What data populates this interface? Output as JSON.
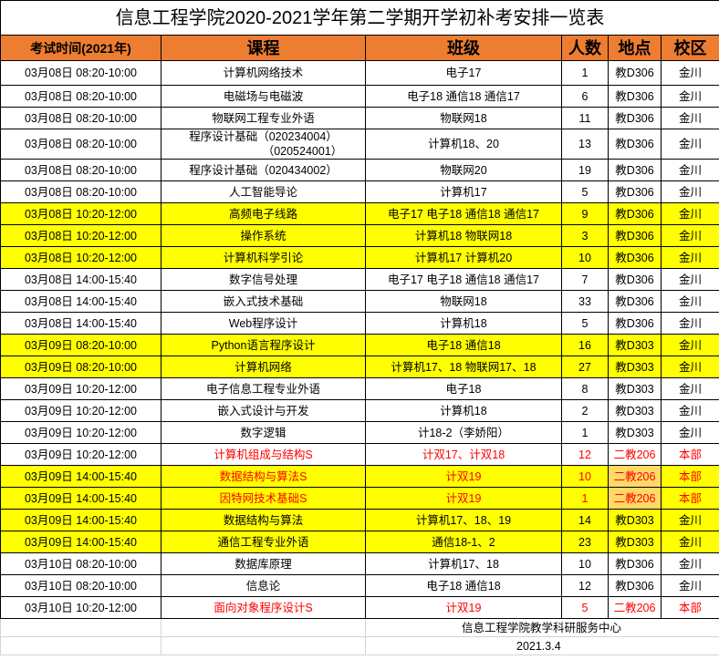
{
  "title": "信息工程学院2020-2021学年第二学期开学初补考安排一览表",
  "headers": [
    "考试时间(2021年)",
    "课程",
    "班级",
    "人数",
    "地点",
    "校区"
  ],
  "colors": {
    "header_bg": "#ed7d31",
    "highlight_row": "#ffff00",
    "highlight_location": "#ffd966",
    "red_text": "#ff0000"
  },
  "rows": [
    {
      "time": "03月08日 08:20-10:00",
      "course": "计算机网络技术",
      "class": "电子17",
      "count": "1",
      "location": "教D306",
      "campus": "金川",
      "hl": false,
      "red": false
    },
    {
      "time": "03月08日 08:20-10:00",
      "course": "电磁场与电磁波",
      "class": "电子18 通信18 通信17",
      "count": "6",
      "location": "教D306",
      "campus": "金川",
      "hl": false,
      "red": false
    },
    {
      "time": "03月08日 08:20-10:00",
      "course": "物联网工程专业外语",
      "class": "物联网18",
      "count": "11",
      "location": "教D306",
      "campus": "金川",
      "hl": false,
      "red": false
    },
    {
      "time": "03月08日 08:20-10:00",
      "course": "程序设计基础（020234004）",
      "course2": "（020524001）",
      "class": "计算机18、20",
      "count": "13",
      "location": "教D306",
      "campus": "金川",
      "hl": false,
      "red": false
    },
    {
      "time": "03月08日 08:20-10:00",
      "course": "程序设计基础（020434002）",
      "class": "物联网20",
      "count": "19",
      "location": "教D306",
      "campus": "金川",
      "hl": false,
      "red": false
    },
    {
      "time": "03月08日 08:20-10:00",
      "course": "人工智能导论",
      "class": "计算机17",
      "count": "5",
      "location": "教D306",
      "campus": "金川",
      "hl": false,
      "red": false
    },
    {
      "time": "03月08日 10:20-12:00",
      "course": "高频电子线路",
      "class": "电子17 电子18 通信18 通信17",
      "count": "9",
      "location": "教D306",
      "campus": "金川",
      "hl": true,
      "red": false
    },
    {
      "time": "03月08日 10:20-12:00",
      "course": "操作系统",
      "class": "计算机18 物联网18",
      "count": "3",
      "location": "教D306",
      "campus": "金川",
      "hl": true,
      "red": false
    },
    {
      "time": "03月08日 10:20-12:00",
      "course": "计算机科学引论",
      "class": "计算机17 计算机20",
      "count": "10",
      "location": "教D306",
      "campus": "金川",
      "hl": true,
      "red": false
    },
    {
      "time": "03月08日 14:00-15:40",
      "course": "数字信号处理",
      "class": "电子17 电子18 通信18 通信17",
      "count": "7",
      "location": "教D306",
      "campus": "金川",
      "hl": false,
      "red": false
    },
    {
      "time": "03月08日 14:00-15:40",
      "course": "嵌入式技术基础",
      "class": "物联网18",
      "count": "33",
      "location": "教D306",
      "campus": "金川",
      "hl": false,
      "red": false
    },
    {
      "time": "03月08日 14:00-15:40",
      "course": "Web程序设计",
      "class": "计算机18",
      "count": "5",
      "location": "教D306",
      "campus": "金川",
      "hl": false,
      "red": false
    },
    {
      "time": "03月09日 08:20-10:00",
      "course": "Python语言程序设计",
      "class": "电子18 通信18",
      "count": "16",
      "location": "教D303",
      "campus": "金川",
      "hl": true,
      "red": false
    },
    {
      "time": "03月09日 08:20-10:00",
      "course": "计算机网络",
      "class": "计算机17、18 物联网17、18",
      "count": "27",
      "location": "教D303",
      "campus": "金川",
      "hl": true,
      "red": false
    },
    {
      "time": "03月09日 10:20-12:00",
      "course": "电子信息工程专业外语",
      "class": "电子18",
      "count": "8",
      "location": "教D303",
      "campus": "金川",
      "hl": false,
      "red": false
    },
    {
      "time": "03月09日 10:20-12:00",
      "course": "嵌入式设计与开发",
      "class": "计算机18",
      "count": "2",
      "location": "教D303",
      "campus": "金川",
      "hl": false,
      "red": false
    },
    {
      "time": "03月09日 10:20-12:00",
      "course": "数字逻辑",
      "class": "计18-2（李娇阳）",
      "count": "1",
      "location": "教D303",
      "campus": "金川",
      "hl": false,
      "red": false
    },
    {
      "time": "03月09日 10:20-12:00",
      "course": "计算机组成与结构S",
      "class": "计双17、计双18",
      "count": "12",
      "location": "二教206",
      "campus": "本部",
      "hl": false,
      "red": true
    },
    {
      "time": "03月09日 14:00-15:40",
      "course": "数据结构与算法S",
      "class": "计双19",
      "count": "10",
      "location": "二教206",
      "campus": "本部",
      "hl": true,
      "red": true,
      "loc_hl": true
    },
    {
      "time": "03月09日 14:00-15:40",
      "course": "因特网技术基础S",
      "class": "计双19",
      "count": "1",
      "location": "二教206",
      "campus": "本部",
      "hl": true,
      "red": true,
      "loc_hl": true
    },
    {
      "time": "03月09日 14:00-15:40",
      "course": "数据结构与算法",
      "class": "计算机17、18、19",
      "count": "14",
      "location": "教D303",
      "campus": "金川",
      "hl": true,
      "red": false
    },
    {
      "time": "03月09日 14:00-15:40",
      "course": "通信工程专业外语",
      "class": "通信18-1、2",
      "count": "23",
      "location": "教D303",
      "campus": "金川",
      "hl": true,
      "red": false
    },
    {
      "time": "03月10日 08:20-10:00",
      "course": "数据库原理",
      "class": "计算机17、18",
      "count": "10",
      "location": "教D306",
      "campus": "金川",
      "hl": false,
      "red": false
    },
    {
      "time": "03月10日 08:20-10:00",
      "course": "信息论",
      "class": "电子18 通信18",
      "count": "12",
      "location": "教D306",
      "campus": "金川",
      "hl": false,
      "red": false
    },
    {
      "time": "03月10日 10:20-12:00",
      "course": "面向对象程序设计S",
      "class": "计双19",
      "count": "5",
      "location": "二教206",
      "campus": "本部",
      "hl": false,
      "red": true
    }
  ],
  "footer": {
    "org": "信息工程学院教学科研服务中心",
    "date": "2021.3.4"
  }
}
